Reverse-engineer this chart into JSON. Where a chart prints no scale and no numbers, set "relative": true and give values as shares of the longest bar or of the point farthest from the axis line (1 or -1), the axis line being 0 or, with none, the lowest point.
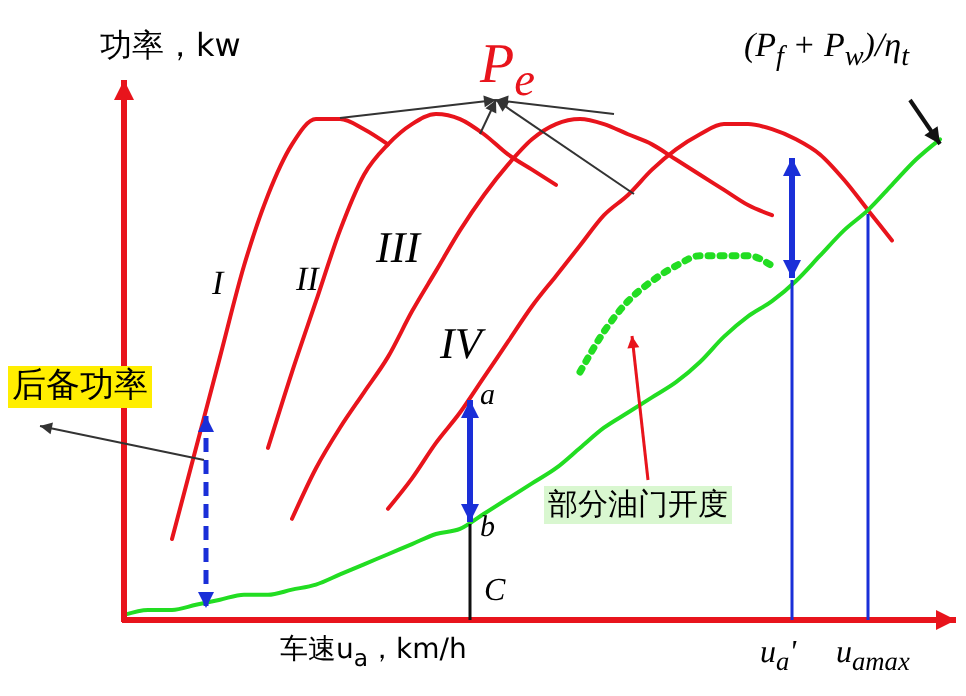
{
  "chart_data": {
    "type": "line",
    "relative": true,
    "xlabel": "车速u$_{a}$，km/h",
    "ylabel": "功率，kw",
    "categories": [
      null,
      null,
      null,
      null,
      null,
      null,
      null,
      null,
      null,
      null,
      null,
      null,
      null,
      null,
      null,
      null,
      null,
      null,
      null,
      null,
      null,
      null,
      null,
      null,
      null,
      null,
      null,
      null,
      null,
      null,
      null,
      null,
      null,
      null,
      null
    ],
    "series": [
      {
        "name": "I",
        "color": "#e8141c",
        "values": [
          null,
          null,
          0.16,
          0.34,
          0.52,
          0.7,
          0.84,
          0.94,
          0.99,
          0.99,
          0.97,
          0.94,
          null,
          null,
          null,
          null,
          null,
          null,
          null,
          null,
          null,
          null,
          null,
          null,
          null,
          null,
          null,
          null,
          null,
          null,
          null,
          null,
          null,
          null,
          null
        ]
      },
      {
        "name": "II",
        "color": "#e8141c",
        "values": [
          null,
          null,
          null,
          null,
          null,
          null,
          0.34,
          0.49,
          0.63,
          0.77,
          0.88,
          0.94,
          0.98,
          1.0,
          0.99,
          0.96,
          0.92,
          0.89,
          0.86,
          null,
          null,
          null,
          null,
          null,
          null,
          null,
          null,
          null,
          null,
          null,
          null,
          null,
          null,
          null,
          null
        ]
      },
      {
        "name": "III",
        "color": "#e8141c",
        "values": [
          null,
          null,
          null,
          null,
          null,
          null,
          null,
          0.2,
          0.3,
          0.38,
          0.45,
          0.52,
          0.61,
          0.69,
          0.77,
          0.84,
          0.9,
          0.95,
          0.98,
          0.99,
          0.98,
          0.96,
          0.94,
          0.91,
          0.88,
          0.85,
          0.82,
          0.8,
          null,
          null,
          null,
          null,
          null,
          null,
          null
        ]
      },
      {
        "name": "IV",
        "color": "#e8141c",
        "values": [
          null,
          null,
          null,
          null,
          null,
          null,
          null,
          null,
          null,
          null,
          null,
          0.22,
          0.28,
          0.35,
          0.41,
          0.48,
          0.55,
          0.62,
          0.68,
          0.74,
          0.8,
          0.84,
          0.89,
          0.93,
          0.96,
          0.98,
          0.98,
          0.97,
          0.95,
          0.92,
          0.87,
          0.81,
          0.75,
          null,
          null
        ]
      },
      {
        "name": "(P$_{f}$ + P$_{w}$)/η$_{t}$",
        "color": "#22dd22",
        "values": [
          0.01,
          0.02,
          0.02,
          0.03,
          0.04,
          0.05,
          0.05,
          0.06,
          0.07,
          0.09,
          0.11,
          0.13,
          0.15,
          0.17,
          0.18,
          0.21,
          0.24,
          0.27,
          0.3,
          0.34,
          0.38,
          0.41,
          0.44,
          0.47,
          0.51,
          0.56,
          0.6,
          0.63,
          0.67,
          0.72,
          0.77,
          0.81,
          0.86,
          0.91,
          0.95
        ]
      },
      {
        "name": "部分油门开度",
        "color": "#22dd22",
        "line_style": "dotted",
        "values": [
          null,
          null,
          null,
          null,
          null,
          null,
          null,
          null,
          null,
          null,
          null,
          null,
          null,
          null,
          null,
          null,
          null,
          null,
          null,
          0.49,
          0.57,
          0.63,
          0.67,
          0.7,
          0.72,
          0.72,
          0.72,
          0.7,
          null,
          null,
          null,
          null,
          null,
          null,
          null
        ]
      }
    ],
    "annotations": [
      "P$_{e}$",
      "后备功率",
      "a",
      "b",
      "C",
      "u$_{a}$'",
      "u$_{amax}$"
    ]
  }
}
